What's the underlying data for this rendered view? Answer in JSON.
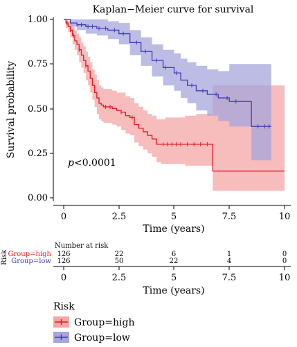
{
  "chart_data": {
    "type": "line",
    "title": "Kaplan−Meier curve for survival",
    "xlabel": "Time (years)",
    "ylabel": "Survival probability",
    "xlim": [
      0,
      10
    ],
    "ylim": [
      0,
      1
    ],
    "x_ticks": [
      "0",
      "2.5",
      "5",
      "7.5",
      "10"
    ],
    "y_ticks": [
      "0.00",
      "0.25",
      "0.50",
      "0.75",
      "1.00"
    ],
    "pvalue_prefix": "p",
    "pvalue_rest": "<0.0001",
    "grid": false,
    "legend": {
      "title": "Risk",
      "placement": "bottom-left",
      "entries": [
        "Group=high",
        "Group=low"
      ]
    },
    "series": [
      {
        "name": "Group=high",
        "color": "#e41a1c",
        "band_color": "#f4a6a6",
        "x": [
          0,
          0.1,
          0.2,
          0.3,
          0.4,
          0.5,
          0.6,
          0.7,
          0.8,
          0.9,
          1.0,
          1.1,
          1.2,
          1.3,
          1.4,
          1.5,
          1.6,
          1.7,
          1.8,
          2.0,
          2.2,
          2.4,
          2.6,
          2.8,
          3.0,
          3.2,
          3.4,
          3.6,
          3.8,
          4.0,
          4.2,
          4.4,
          4.6,
          5.0,
          5.5,
          6.0,
          6.5,
          6.75,
          10.0
        ],
        "values": [
          1.0,
          0.98,
          0.96,
          0.94,
          0.91,
          0.88,
          0.86,
          0.83,
          0.8,
          0.77,
          0.74,
          0.71,
          0.67,
          0.63,
          0.59,
          0.56,
          0.53,
          0.52,
          0.51,
          0.51,
          0.5,
          0.49,
          0.48,
          0.46,
          0.45,
          0.41,
          0.39,
          0.37,
          0.35,
          0.33,
          0.3,
          0.3,
          0.3,
          0.3,
          0.3,
          0.3,
          0.3,
          0.15,
          0.15
        ],
        "ci_lower": [
          1.0,
          0.95,
          0.93,
          0.9,
          0.86,
          0.83,
          0.8,
          0.76,
          0.73,
          0.7,
          0.66,
          0.63,
          0.59,
          0.55,
          0.51,
          0.47,
          0.44,
          0.43,
          0.42,
          0.42,
          0.41,
          0.4,
          0.38,
          0.36,
          0.35,
          0.31,
          0.29,
          0.27,
          0.25,
          0.23,
          0.2,
          0.19,
          0.19,
          0.19,
          0.18,
          0.18,
          0.18,
          0.04,
          0.04
        ],
        "ci_upper": [
          1.0,
          1.0,
          0.99,
          0.98,
          0.96,
          0.94,
          0.92,
          0.9,
          0.87,
          0.85,
          0.82,
          0.79,
          0.76,
          0.72,
          0.69,
          0.66,
          0.63,
          0.62,
          0.61,
          0.61,
          0.6,
          0.59,
          0.59,
          0.57,
          0.56,
          0.53,
          0.51,
          0.49,
          0.47,
          0.46,
          0.44,
          0.44,
          0.45,
          0.45,
          0.46,
          0.47,
          0.47,
          0.63,
          0.63
        ]
      },
      {
        "name": "Group=low",
        "color": "#3c3cb4",
        "band_color": "#a6a6dc",
        "x": [
          0,
          0.3,
          0.6,
          1.0,
          1.5,
          2.0,
          2.5,
          3.0,
          3.5,
          4.0,
          4.5,
          5.0,
          5.3,
          5.6,
          6.0,
          6.5,
          7.0,
          7.5,
          8.0,
          8.5,
          9.4
        ],
        "values": [
          1.0,
          0.98,
          0.97,
          0.96,
          0.95,
          0.94,
          0.92,
          0.87,
          0.82,
          0.77,
          0.73,
          0.7,
          0.66,
          0.63,
          0.6,
          0.58,
          0.56,
          0.54,
          0.54,
          0.4,
          0.4
        ],
        "ci_lower": [
          1.0,
          0.96,
          0.94,
          0.92,
          0.91,
          0.89,
          0.86,
          0.8,
          0.74,
          0.68,
          0.63,
          0.6,
          0.56,
          0.53,
          0.49,
          0.46,
          0.43,
          0.4,
          0.4,
          0.21,
          0.21
        ],
        "ci_upper": [
          1.0,
          1.0,
          1.0,
          1.0,
          1.0,
          0.99,
          0.98,
          0.94,
          0.9,
          0.86,
          0.83,
          0.81,
          0.78,
          0.76,
          0.74,
          0.72,
          0.71,
          0.75,
          0.75,
          0.75,
          0.75
        ]
      }
    ],
    "censor_marks": [
      {
        "series": "Group=low",
        "x": [
          0.6,
          0.8,
          1.1,
          1.3,
          1.6,
          1.9,
          2.3,
          2.7,
          3.3,
          3.7,
          4.2,
          4.6,
          5.1,
          5.8,
          6.3,
          6.9,
          7.4,
          7.8,
          8.8,
          9.1,
          9.3
        ]
      },
      {
        "series": "Group=high",
        "x": [
          0.15,
          0.3,
          0.45,
          0.7,
          1.0,
          1.9,
          2.1,
          2.6,
          3.1,
          4.5,
          4.7,
          4.9,
          5.1,
          5.3,
          5.6,
          5.9,
          6.2,
          6.5
        ]
      }
    ],
    "risk_table": {
      "title": "Number at risk",
      "label": "Risk",
      "xlabel": "Time (years)",
      "x_ticks": [
        "0",
        "2.5",
        "5",
        "7.5",
        "10"
      ],
      "rows": [
        {
          "group": "Group=high",
          "color": "#e41a1c",
          "counts": [
            "126",
            "22",
            "6",
            "1",
            "0"
          ]
        },
        {
          "group": "Group=low",
          "color": "#3c3cb4",
          "counts": [
            "126",
            "50",
            "22",
            "4",
            "0"
          ]
        }
      ]
    }
  }
}
